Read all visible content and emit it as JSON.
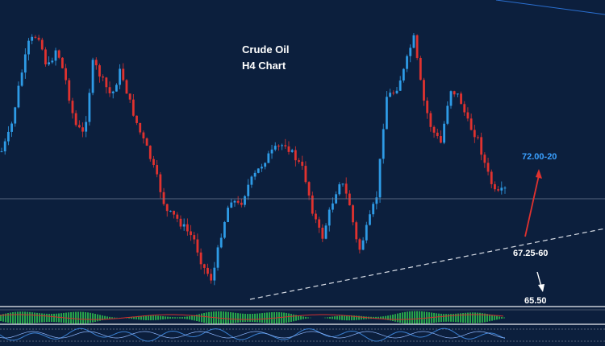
{
  "chart_data": {
    "type": "candlestick",
    "title": "Crude Oil",
    "subtitle": "H4  Chart",
    "colors": {
      "background": "#0c1f3d",
      "bull": "#2e9be6",
      "bear": "#e0322f",
      "target_up": "#3aa0ff",
      "arrow_up": "#e0322f",
      "trendline": "#d8dde6",
      "panel_separator": "#c9ced6",
      "histogram": "#27a34a",
      "signal_line": "#d03030",
      "oscillator": "#3a7fd0"
    },
    "price_close_path": [
      0.52,
      0.6,
      0.78,
      0.92,
      0.95,
      0.82,
      0.9,
      0.78,
      0.62,
      0.58,
      0.85,
      0.78,
      0.72,
      0.82,
      0.7,
      0.6,
      0.52,
      0.42,
      0.3,
      0.28,
      0.24,
      0.2,
      0.1,
      0.05,
      0.22,
      0.35,
      0.32,
      0.4,
      0.45,
      0.5,
      0.53,
      0.55,
      0.5,
      0.45,
      0.3,
      0.2,
      0.32,
      0.42,
      0.33,
      0.15,
      0.25,
      0.36,
      0.72,
      0.74,
      0.82,
      0.94,
      0.72,
      0.6,
      0.55,
      0.75,
      0.72,
      0.62,
      0.57,
      0.45,
      0.36,
      0.38
    ],
    "annotations": [
      {
        "label": "72.00-20",
        "kind": "target-up"
      },
      {
        "label": "67.25-60",
        "kind": "trendline-support"
      },
      {
        "label": "65.50",
        "kind": "target-down"
      }
    ],
    "indicator_panels": [
      {
        "name": "momentum-histogram",
        "type": "histogram"
      },
      {
        "name": "oscillator",
        "type": "line"
      }
    ]
  }
}
